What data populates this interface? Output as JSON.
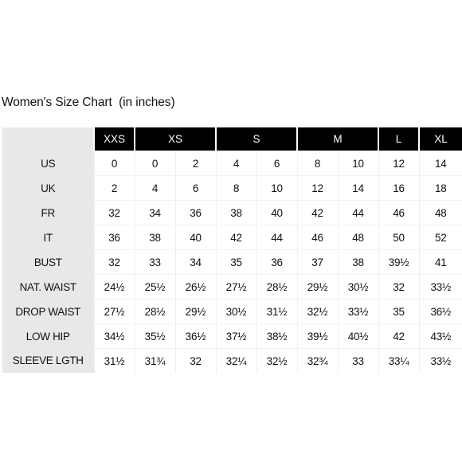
{
  "title": "Women's Size Chart  (in inches)",
  "header_groups": [
    {
      "label": "XXS",
      "span": 1
    },
    {
      "label": "XS",
      "span": 2
    },
    {
      "label": "S",
      "span": 2
    },
    {
      "label": "M",
      "span": 2
    },
    {
      "label": "L",
      "span": 1
    },
    {
      "label": "XL",
      "span": 1
    }
  ],
  "rows": [
    {
      "label": "US",
      "values": [
        "0",
        "0",
        "2",
        "4",
        "6",
        "8",
        "10",
        "12",
        "14"
      ]
    },
    {
      "label": "UK",
      "values": [
        "2",
        "4",
        "6",
        "8",
        "10",
        "12",
        "14",
        "16",
        "18"
      ]
    },
    {
      "label": "FR",
      "values": [
        "32",
        "34",
        "36",
        "38",
        "40",
        "42",
        "44",
        "46",
        "48"
      ]
    },
    {
      "label": "IT",
      "values": [
        "36",
        "38",
        "40",
        "42",
        "44",
        "46",
        "48",
        "50",
        "52"
      ]
    },
    {
      "label": "BUST",
      "values": [
        "32",
        "33",
        "34",
        "35",
        "36",
        "37",
        "38",
        "39½",
        "41"
      ]
    },
    {
      "label": "NAT. WAIST",
      "values": [
        "24½",
        "25½",
        "26½",
        "27½",
        "28½",
        "29½",
        "30½",
        "32",
        "33½"
      ]
    },
    {
      "label": "DROP WAIST",
      "values": [
        "27½",
        "28½",
        "29½",
        "30½",
        "31½",
        "32½",
        "33½",
        "35",
        "36½"
      ]
    },
    {
      "label": "LOW HIP",
      "values": [
        "34½",
        "35½",
        "36½",
        "37½",
        "38½",
        "39½",
        "40½",
        "42",
        "43½"
      ]
    },
    {
      "label": "SLEEVE LGTH",
      "values": [
        "31½",
        "31¾",
        "32",
        "32¼",
        "32½",
        "32¾",
        "33",
        "33¼",
        "33½"
      ]
    }
  ]
}
